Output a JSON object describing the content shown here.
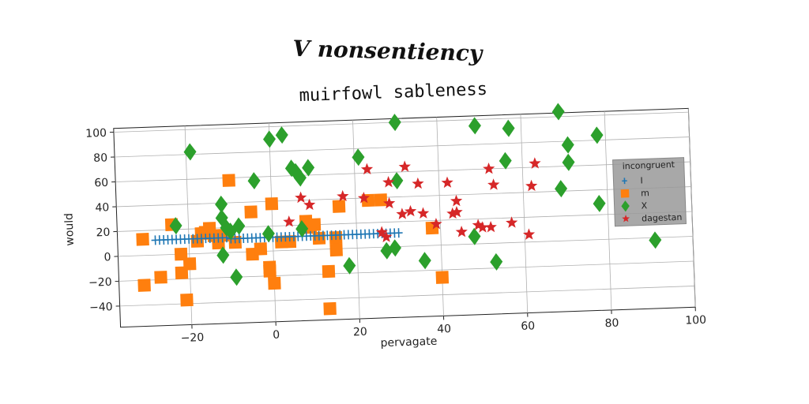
{
  "chart_data": {
    "type": "scatter",
    "suptitle": "V nonsentiency",
    "title": "muirfowl sableness",
    "xlabel": "pervagate",
    "ylabel": "would",
    "xlim": [
      -37,
      100
    ],
    "ylim": [
      -57,
      103
    ],
    "xticks": [
      -20,
      0,
      20,
      40,
      60,
      80,
      100
    ],
    "yticks": [
      -40,
      -20,
      0,
      20,
      40,
      60,
      80,
      100
    ],
    "grid": true,
    "legend": {
      "title": "incongruent",
      "placement": "right"
    },
    "series": [
      {
        "name": "I",
        "marker": "plus",
        "color": "#1f77b4",
        "points": [
          [
            -28,
            12
          ],
          [
            -27,
            12
          ],
          [
            -26,
            12
          ],
          [
            -25,
            12
          ],
          [
            -24,
            12
          ],
          [
            -23,
            12
          ],
          [
            -22,
            12
          ],
          [
            -21,
            12
          ],
          [
            -20,
            12
          ],
          [
            -19,
            12
          ],
          [
            -18,
            12
          ],
          [
            -17,
            12
          ],
          [
            -16,
            12
          ],
          [
            -15,
            12
          ],
          [
            -14,
            12
          ],
          [
            -13,
            12
          ],
          [
            -12,
            12
          ],
          [
            -11,
            12
          ],
          [
            -10,
            11
          ],
          [
            -9,
            11
          ],
          [
            -8,
            11
          ],
          [
            -7,
            11
          ],
          [
            -6,
            11
          ],
          [
            -5,
            11
          ],
          [
            -4,
            11
          ],
          [
            -3,
            11
          ],
          [
            -2,
            11
          ],
          [
            -1,
            11
          ],
          [
            0,
            11
          ],
          [
            1,
            11
          ],
          [
            2,
            11
          ],
          [
            3,
            11
          ],
          [
            4,
            11
          ],
          [
            5,
            11
          ],
          [
            6,
            11
          ],
          [
            7,
            11
          ],
          [
            8,
            11
          ],
          [
            9,
            11
          ],
          [
            10,
            11
          ],
          [
            11,
            11
          ],
          [
            12,
            11
          ],
          [
            13,
            11
          ],
          [
            14,
            11
          ],
          [
            15,
            11
          ],
          [
            16,
            11
          ],
          [
            17,
            11
          ],
          [
            18,
            11
          ],
          [
            19,
            11
          ],
          [
            20,
            11
          ],
          [
            21,
            11
          ],
          [
            22,
            11
          ],
          [
            23,
            11
          ],
          [
            24,
            11
          ],
          [
            25,
            11
          ],
          [
            26,
            11
          ],
          [
            27,
            11
          ],
          [
            28,
            11
          ],
          [
            29,
            11
          ],
          [
            30,
            11
          ]
        ]
      },
      {
        "name": "m",
        "marker": "square",
        "color": "#ff7f0e",
        "points": [
          [
            -31,
            13
          ],
          [
            -31,
            -24
          ],
          [
            -27,
            -18
          ],
          [
            -24,
            24
          ],
          [
            -22,
            0
          ],
          [
            -22,
            -15
          ],
          [
            -21,
            -37
          ],
          [
            -20,
            -8
          ],
          [
            -18,
            10
          ],
          [
            -17,
            16
          ],
          [
            -16,
            17
          ],
          [
            -15,
            20
          ],
          [
            -13,
            8
          ],
          [
            -12,
            14
          ],
          [
            -10,
            58
          ],
          [
            -9,
            8
          ],
          [
            -5,
            32
          ],
          [
            -5,
            -2
          ],
          [
            -3,
            2
          ],
          [
            -1,
            -16
          ],
          [
            -1,
            -13
          ],
          [
            0,
            38
          ],
          [
            0,
            -26
          ],
          [
            2,
            7
          ],
          [
            4,
            7
          ],
          [
            8,
            23
          ],
          [
            10,
            20
          ],
          [
            13,
            -48
          ],
          [
            13,
            -18
          ],
          [
            15,
            9
          ],
          [
            15,
            -1
          ],
          [
            16,
            34
          ],
          [
            23,
            38
          ],
          [
            26,
            38
          ],
          [
            38,
            14
          ],
          [
            40,
            -26
          ],
          [
            9,
            18
          ],
          [
            -14,
            14
          ],
          [
            11,
            9
          ]
        ]
      },
      {
        "name": "X",
        "marker": "diamond",
        "color": "#2ca02c",
        "points": [
          [
            -23,
            23
          ],
          [
            -19,
            82
          ],
          [
            -12,
            39
          ],
          [
            -12,
            28
          ],
          [
            -12,
            -2
          ],
          [
            -11,
            20
          ],
          [
            -10,
            17
          ],
          [
            -9,
            -20
          ],
          [
            -8,
            21
          ],
          [
            -4,
            57
          ],
          [
            -1,
            14
          ],
          [
            0,
            90
          ],
          [
            3,
            93
          ],
          [
            5,
            66
          ],
          [
            6,
            63
          ],
          [
            7,
            58
          ],
          [
            7,
            17
          ],
          [
            9,
            66
          ],
          [
            18,
            -14
          ],
          [
            21,
            73
          ],
          [
            27,
            -3
          ],
          [
            29,
            -1
          ],
          [
            30,
            53
          ],
          [
            30,
            100
          ],
          [
            36,
            -12
          ],
          [
            48,
            6
          ],
          [
            49,
            95
          ],
          [
            53,
            -15
          ],
          [
            56,
            66
          ],
          [
            57,
            92
          ],
          [
            69,
            104
          ],
          [
            71,
            77
          ],
          [
            71,
            63
          ],
          [
            69,
            42
          ],
          [
            78,
            84
          ],
          [
            78,
            29
          ],
          [
            91,
            -2
          ]
        ]
      },
      {
        "name": "dagestan",
        "marker": "star",
        "color": "#d62728",
        "points": [
          [
            4,
            23
          ],
          [
            7,
            42
          ],
          [
            9,
            36
          ],
          [
            17,
            42
          ],
          [
            22,
            40
          ],
          [
            23,
            63
          ],
          [
            26,
            12
          ],
          [
            27,
            8
          ],
          [
            28,
            52
          ],
          [
            28,
            35
          ],
          [
            31,
            26
          ],
          [
            32,
            64
          ],
          [
            33,
            28
          ],
          [
            35,
            50
          ],
          [
            36,
            26
          ],
          [
            39,
            17
          ],
          [
            42,
            50
          ],
          [
            43,
            25
          ],
          [
            44,
            35
          ],
          [
            44,
            26
          ],
          [
            45,
            10
          ],
          [
            49,
            15
          ],
          [
            50,
            13
          ],
          [
            52,
            60
          ],
          [
            52,
            13
          ],
          [
            53,
            47
          ],
          [
            57,
            16
          ],
          [
            61,
            6
          ],
          [
            62,
            45
          ],
          [
            63,
            63
          ]
        ]
      }
    ]
  }
}
